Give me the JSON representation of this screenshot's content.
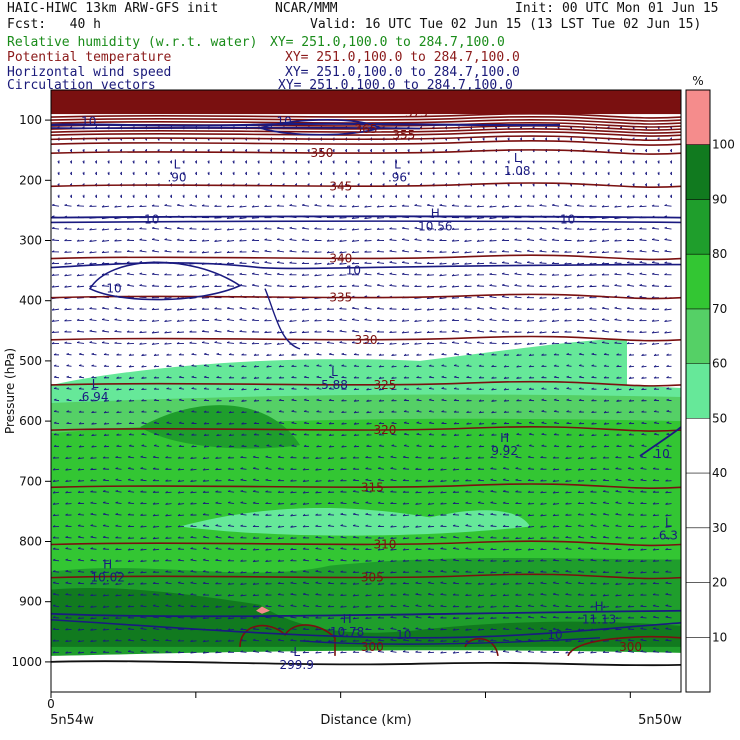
{
  "header": {
    "line1_left": "HAIC-HIWC 13km ARW-GFS init",
    "line1_center": "NCAR/MMM",
    "line1_right": "Init: 00 UTC Mon 01 Jun 15",
    "line2_left": "Fcst:   40 h",
    "line2_right": "Valid: 16 UTC Tue 02 Jun 15 (13 LST Tue 02 Jun 15)"
  },
  "fields": [
    {
      "name": "Relative humidity (w.r.t. water)",
      "xy": "XY= 251.0,100.0 to 284.7,100.0",
      "color": "#1a8c1a"
    },
    {
      "name": "Potential temperature",
      "xy": "XY= 251.0,100.0 to 284.7,100.0",
      "color": "#8b1a1a"
    },
    {
      "name": "Horizontal wind speed",
      "xy": "XY= 251.0,100.0 to 284.7,100.0",
      "color": "#1a1a7a"
    },
    {
      "name": "Circulation vectors",
      "xy": "XY= 251.0,100.0 to 284.7,100.0",
      "color": "#1a1a7a"
    }
  ],
  "colors": {
    "rh_levels": [
      {
        "min": 50,
        "max": 60,
        "color": "#66e899"
      },
      {
        "min": 60,
        "max": 70,
        "color": "#55d066"
      },
      {
        "min": 70,
        "max": 80,
        "color": "#33c633"
      },
      {
        "min": 80,
        "max": 90,
        "color": "#1f9e2c"
      },
      {
        "min": 90,
        "max": 100,
        "color": "#117a1f"
      },
      {
        "min": 100,
        "max": 110,
        "color": "#f58c8c"
      }
    ],
    "theta": "#7a1010",
    "wind": "#1a1a80",
    "vector": "#1a1a80"
  },
  "chart_data": {
    "type": "heatmap",
    "title": "",
    "xlabel": "Distance (km)",
    "ylabel": "Pressure (hPa)",
    "x_start_label": "5n54w",
    "x_end_label": "5n50w",
    "x_tick_labels": [
      "0"
    ],
    "yticks": [
      100,
      200,
      300,
      400,
      500,
      600,
      700,
      800,
      900,
      1000
    ],
    "ylim": [
      50,
      1050
    ],
    "colorbar": {
      "unit": "%",
      "ticks": [
        10,
        20,
        30,
        40,
        50,
        60,
        70,
        80,
        90,
        100
      ]
    },
    "theta_labels": [
      {
        "text": "350",
        "p": 155,
        "f": 0.43
      },
      {
        "text": "345",
        "p": 210,
        "f": 0.46
      },
      {
        "text": "340",
        "p": 330,
        "f": 0.46
      },
      {
        "text": "335",
        "p": 395,
        "f": 0.46
      },
      {
        "text": "330",
        "p": 465,
        "f": 0.5
      },
      {
        "text": "325",
        "p": 540,
        "f": 0.53
      },
      {
        "text": "320",
        "p": 615,
        "f": 0.53
      },
      {
        "text": "315",
        "p": 710,
        "f": 0.51
      },
      {
        "text": "310",
        "p": 805,
        "f": 0.53
      },
      {
        "text": "305",
        "p": 860,
        "f": 0.51
      },
      {
        "text": "300",
        "p": 975,
        "f": 0.51
      },
      {
        "text": "300",
        "p": 975,
        "f": 0.92
      },
      {
        "text": "375",
        "p": 88,
        "f": 0.58
      },
      {
        "text": "365",
        "p": 115,
        "f": 0.5
      },
      {
        "text": "355",
        "p": 125,
        "f": 0.56
      }
    ],
    "speed_labels": [
      {
        "text": "10",
        "p": 265,
        "f": 0.16
      },
      {
        "text": "10",
        "p": 380,
        "f": 0.1
      },
      {
        "text": "10",
        "p": 350,
        "f": 0.48
      },
      {
        "text": "10",
        "p": 265,
        "f": 0.82
      },
      {
        "text": "10",
        "p": 655,
        "f": 0.97
      },
      {
        "text": "10",
        "p": 955,
        "f": 0.8
      },
      {
        "text": "10",
        "p": 955,
        "f": 0.56
      },
      {
        "text": "10",
        "p": 102,
        "f": 0.06
      },
      {
        "text": "10",
        "p": 102,
        "f": 0.37
      }
    ],
    "extrema": [
      {
        "kind": "L",
        "value": ".90",
        "p": 180,
        "f": 0.2
      },
      {
        "kind": "L",
        "value": ".96",
        "p": 180,
        "f": 0.55
      },
      {
        "kind": "L",
        "value": "1.08",
        "p": 170,
        "f": 0.74
      },
      {
        "kind": "H",
        "value": "10.56",
        "p": 262,
        "f": 0.61
      },
      {
        "kind": "L",
        "value": "6.94",
        "p": 545,
        "f": 0.07
      },
      {
        "kind": "L",
        "value": "5.88",
        "p": 525,
        "f": 0.45
      },
      {
        "kind": "H",
        "value": "9.92",
        "p": 635,
        "f": 0.72
      },
      {
        "kind": "L",
        "value": "6.3",
        "p": 775,
        "f": 0.98
      },
      {
        "kind": "H",
        "value": "10.02",
        "p": 845,
        "f": 0.09
      },
      {
        "kind": "H",
        "value": "10.78",
        "p": 935,
        "f": 0.47
      },
      {
        "kind": "H",
        "value": "11.13",
        "p": 915,
        "f": 0.87
      },
      {
        "kind": "L",
        "value": "299.9",
        "p": 990,
        "f": 0.39
      }
    ]
  }
}
